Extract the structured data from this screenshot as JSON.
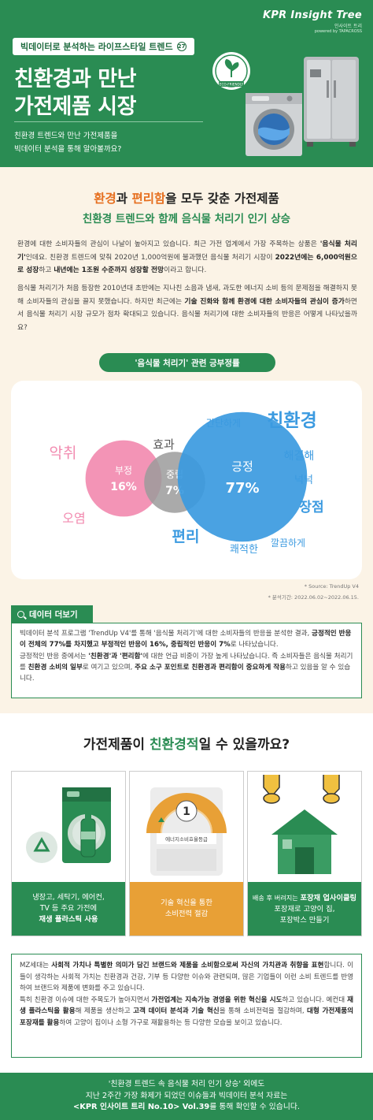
{
  "brand": {
    "name": "KPR Insight Tree",
    "sub": "인사이트 트리",
    "powered": "powered by TAPACROSS"
  },
  "header": {
    "series_label": "빅데이터로 분석하는 라이프스타일 트렌드",
    "series_no": "27",
    "title_line1": "친환경과 만난",
    "title_line2": "가전제품 시장",
    "desc_line1": "친환경 트렌드와 만난 가전제품을",
    "desc_line2": "빅데이터 분석을 통해 알아볼까요?",
    "badge": "ECO-FRIENDLY"
  },
  "section1": {
    "title_a": "환경",
    "title_b": "과 ",
    "title_c": "편리함",
    "title_d": "을 모두 갖춘 가전제품",
    "subtitle": "친환경 트렌드와 함께 음식물 처리기 인기 상승",
    "p1_a": "환경에 대한 소비자들의 관심이 나날이 높아지고 있습니다. 최근 가전 업계에서 가장 주목하는 상품은 ",
    "p1_b": "'음식물 처리기'",
    "p1_c": "인데요. 친환경 트렌드에 맞춰 2020년 1,000억원에 불과했던 음식물 처리기 시장이 ",
    "p1_d": "2022년에는 6,000억원으로 성장",
    "p1_e": "하고 ",
    "p1_f": "내년에는 1조원 수준까지 성장할 전망",
    "p1_g": "이라고 합니다.",
    "p2_a": "음식물 처리기가 처음 등장한 2010년대 초반에는 지나친 소음과 냄새, 과도한 에너지 소비 등의 문제점을 해결하지 못해 소비자들의 관심을 끌지 못했습니다. 하지만 최근에는 ",
    "p2_b": "기술 진화와 함께 환경에 대한 소비자들의 관심이 증가",
    "p2_c": "하면서 음식물 처리기 시장 규모가 점차 확대되고 있습니다. 음식물 처리기에 대한 소비자들의 반응은 어떻게 나타났을까요?",
    "chart_pill": "'음식물 처리기' 관련 긍부정률",
    "source": "* Source: TrendUp V4",
    "period": "* 분석기간: 2022.06.02~2022.06.15."
  },
  "chart_data": {
    "type": "bubble",
    "title": "'음식물 처리기' 관련 긍부정률",
    "series": [
      {
        "name": "부정",
        "value": 16,
        "label": "16%",
        "color": "#f28bb0"
      },
      {
        "name": "중립",
        "value": 7,
        "label": "7%",
        "color": "#9b9b9b"
      },
      {
        "name": "긍정",
        "value": 77,
        "label": "77%",
        "color": "#3b9ae0"
      }
    ],
    "keywords": [
      {
        "text": "악취",
        "color": "#f28bb0"
      },
      {
        "text": "오염",
        "color": "#f28bb0"
      },
      {
        "text": "효과",
        "color": "#555555"
      },
      {
        "text": "간단하게",
        "color": "#3b9ae0"
      },
      {
        "text": "친환경",
        "color": "#3b9ae0"
      },
      {
        "text": "해결해",
        "color": "#3b9ae0"
      },
      {
        "text": "넉넉",
        "color": "#3b9ae0"
      },
      {
        "text": "장점",
        "color": "#3b9ae0"
      },
      {
        "text": "깔끔하게",
        "color": "#3b9ae0"
      },
      {
        "text": "편리",
        "color": "#3b9ae0"
      },
      {
        "text": "쾌적한",
        "color": "#3b9ae0"
      }
    ]
  },
  "data_more": {
    "tag": "데이터 더보기",
    "l1_a": "빅데이터 분석 프로그램 'TrendUp V4'를 통해 '음식물 처리기'에 대한 소비자들의 반응을 분석한 결과, ",
    "l1_b": "긍정적인 반응이 전체의 77%를 차지했고 부정적인 반응이 16%, 중립적인 반응이 7%",
    "l1_c": "로 나타났습니다.",
    "l2_a": "긍정적인 반응 중에서는 ",
    "l2_b": "'친환경'과 '편리함'",
    "l2_c": "에 대한 언급 비중이 가장 높게 나타났습니다. 즉 소비자들은 음식물 처리기를 ",
    "l2_d": "친환경 소비의 일부",
    "l2_e": "로 여기고 있으며, ",
    "l2_f": "주요 소구 포인트로 친환경과 편리함이 중요하게 작용",
    "l2_g": "하고 있음을 알 수 있습니다."
  },
  "section2": {
    "title_a": "가전제품이 ",
    "title_b": "친환경적",
    "title_c": "일 수 있을까요?",
    "card1_l1": "냉장고, 세탁기, 에어컨,",
    "card1_l2": "TV 등 주요 가전에",
    "card1_l3": "재생 플라스틱 사용",
    "card2_l1": "기술 혁신을 통한",
    "card2_l2": "소비전력 절감",
    "card2_grade": "1",
    "card2_grade_label": "에너지소비효율등급",
    "card3_l1a": "배송 후 버려지는 ",
    "card3_l1b": "포장재 업사이클링",
    "card3_l2": "포장재로 고양이 집,",
    "card3_l3": "포장박스 만들기"
  },
  "bottom": {
    "a1": "MZ세대는 ",
    "a2": "사회적 가치나 특별한 의미가 담긴 브랜드와 제품을 소비함으로써 자신의 가치관과 취향을 표현",
    "a3": "합니다. 이들이 생각하는 사회적 가치는 친환경과 건강, 기부 등 다양한 이슈와 관련되며, 많은 기업들이 이런 소비 트렌드를 반영하여 브랜드와 제품에 변화를 주고 있습니다.",
    "b1": "특히 친환경 이슈에 대한 주목도가 높아지면서 ",
    "b2": "가전업계는 지속가능 경영을 위한 혁신을 시도",
    "b3": "하고 있습니다. 예컨대 ",
    "b4": "재생 플라스틱을 활용",
    "b5": "해 제품을 생산하고 ",
    "b6": "고객 데이터 분석과 기술 혁신",
    "b7": "을 통해 소비전력을 절감하며, ",
    "b8": "대형 가전제품의 포장재를 활용",
    "b9": "하여 고양이 집이나 소형 가구로 재활용하는 등 다양한 모습을 보이고 있습니다."
  },
  "footer": {
    "l1": "'친환경 트렌드 속 음식물 처리 인기 상승' 외에도",
    "l2": "지난 2주간 가장 화제가 되었던 이슈들과 빅데이터 분석 자료는",
    "l3a": "<KPR 인사이트 트리 No.10> Vol.39",
    "l3b": "를 통해 확인할 수 있습니다."
  }
}
